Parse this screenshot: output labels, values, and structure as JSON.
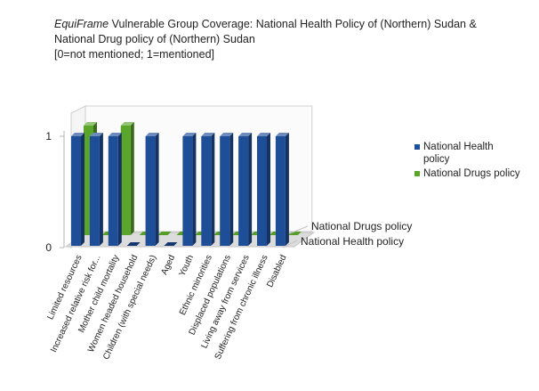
{
  "title": {
    "italic_part": "EquiFrame",
    "line1_rest": " Vulnerable Group Coverage:  National Health Policy of (Northern) Sudan &",
    "line2": "National Drug policy of (Northern) Sudan",
    "line3": "[0=not mentioned; 1=mentioned]"
  },
  "colors": {
    "health": "#1f4e99",
    "drugs": "#5aa62a"
  },
  "legend": {
    "health_label": "National Health policy",
    "drugs_label": "National Drugs policy"
  },
  "chart_data": {
    "type": "bar",
    "categories": [
      "Limited resources",
      "Increased relative risk for...",
      "Mother child mortality",
      "Women headed household",
      "Children (with special needs)",
      "Aged",
      "Youth",
      "Ethnic minorities",
      "Displaced populations",
      "Living away from services",
      "Suffering from chronic illness",
      "Disabled"
    ],
    "series": [
      {
        "name": "National Health policy",
        "values": [
          1,
          1,
          1,
          0,
          1,
          0,
          1,
          1,
          1,
          1,
          1,
          1
        ]
      },
      {
        "name": "National Drugs policy",
        "values": [
          1,
          0,
          1,
          0,
          0,
          0,
          0,
          0,
          0,
          0,
          0,
          0
        ]
      }
    ],
    "y_ticks": [
      "0",
      "1"
    ],
    "ylim": [
      0,
      1
    ],
    "depth_labels": [
      "National Drugs policy",
      "National Health policy"
    ],
    "legend_position": "right"
  }
}
